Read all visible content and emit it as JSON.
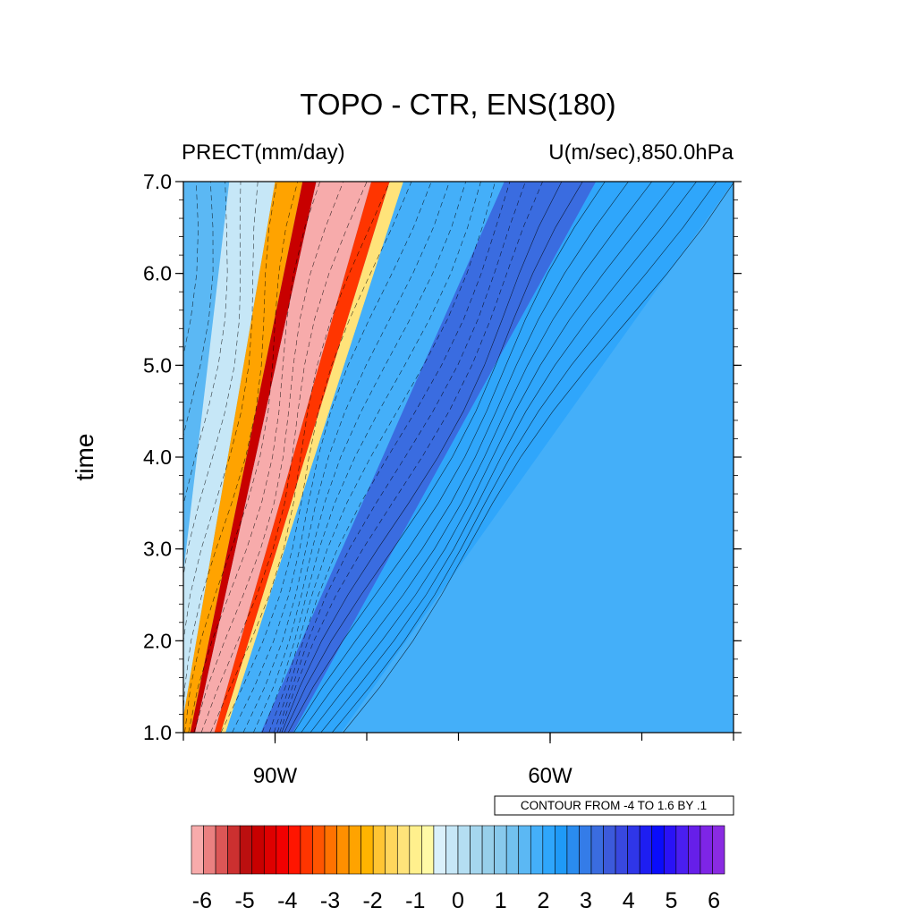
{
  "chart_data": {
    "type": "heatmap",
    "title": "TOPO - CTR, ENS(180)",
    "left_subtitle": "PRECT(mm/day)",
    "right_subtitle": "U(m/sec),850.0hPa",
    "ylabel": "time",
    "xlabel": "",
    "x_range_deg_lon": [
      -100,
      -40
    ],
    "ylim": [
      1.0,
      7.0
    ],
    "x_ticks": [
      {
        "value": -90,
        "label": "90W"
      },
      {
        "value": -60,
        "label": "60W"
      }
    ],
    "y_ticks": [
      {
        "value": 1.0,
        "label": "1.0"
      },
      {
        "value": 2.0,
        "label": "2.0"
      },
      {
        "value": 3.0,
        "label": "3.0"
      },
      {
        "value": 4.0,
        "label": "4.0"
      },
      {
        "value": 5.0,
        "label": "5.0"
      },
      {
        "value": 6.0,
        "label": "6.0"
      },
      {
        "value": 7.0,
        "label": "7.0"
      }
    ],
    "contour_info": "CONTOUR FROM -4 TO 1.6 BY .1",
    "colorbar": {
      "min": -6.25,
      "max": 6.25,
      "step": 0.25,
      "tick_labels": [
        "-6",
        "-5",
        "-4",
        "-3",
        "-2",
        "-1",
        "0",
        "1",
        "2",
        "3",
        "4",
        "5",
        "6"
      ],
      "colors": [
        "#f7abab",
        "#ea8080",
        "#dc5656",
        "#cc3030",
        "#bb0f0f",
        "#c80000",
        "#de0000",
        "#f20000",
        "#ff1500",
        "#ff3500",
        "#ff5500",
        "#ff7200",
        "#ff8f00",
        "#ffa300",
        "#ffb400",
        "#ffc533",
        "#ffd65c",
        "#ffe37a",
        "#fff08d",
        "#fffaa6",
        "#daf0fb",
        "#c6e7f7",
        "#b4def2",
        "#a5d6ee",
        "#97cfea",
        "#88c9ec",
        "#72c1ef",
        "#5bb8f4",
        "#44aff9",
        "#2fa6fb",
        "#1f9af7",
        "#2a8cef",
        "#347ce8",
        "#3a6ce0",
        "#3c5adb",
        "#3848e0",
        "#2f36e8",
        "#1e1ef2",
        "#0a0cfb",
        "#2a12f6",
        "#4a1ef0",
        "#661fe9",
        "#7e25e6",
        "#8a2be2"
      ]
    },
    "shading_field": {
      "description": "precipitation difference; bands drift east with time",
      "bands_at_time_7": [
        {
          "from_lon": -100,
          "to_lon": -95,
          "value": 0.5
        },
        {
          "from_lon": -95,
          "to_lon": -90,
          "value": -1.0
        },
        {
          "from_lon": -90,
          "to_lon": -87,
          "value": -3.0
        },
        {
          "from_lon": -87,
          "to_lon": -85.5,
          "value": -5.0
        },
        {
          "from_lon": -85.5,
          "to_lon": -79.5,
          "value": -6.2
        },
        {
          "from_lon": -79.5,
          "to_lon": -77.5,
          "value": -4.0
        },
        {
          "from_lon": -77.5,
          "to_lon": -76,
          "value": -2.0
        },
        {
          "from_lon": -76,
          "to_lon": -65,
          "value": 0.8
        },
        {
          "from_lon": -65,
          "to_lon": -55,
          "value": 2.2
        },
        {
          "from_lon": -55,
          "to_lon": -40,
          "value": 1.0
        }
      ]
    },
    "contour_field": {
      "variable": "U 850hPa difference",
      "range": [
        -4,
        1.6
      ],
      "interval": 0.1
    }
  }
}
